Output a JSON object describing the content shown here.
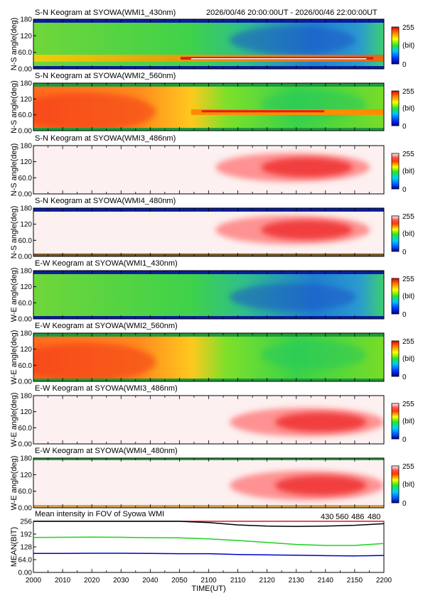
{
  "chart_data": {
    "type": "heatmap",
    "header": {
      "time_range_start": "2026/00/46 20:00:00UT",
      "separator": " - ",
      "time_range_end": "2026/00/46 22:00:00UT"
    },
    "x_axis": {
      "label": "TIME(UT)",
      "range": [
        2000,
        2200
      ],
      "ticks": [
        "2000",
        "2010",
        "2020",
        "2030",
        "2040",
        "2050",
        "2100",
        "2110",
        "2120",
        "2130",
        "2140",
        "2150",
        "2200"
      ]
    },
    "keograms": [
      {
        "title": "S-N Keogram at SYOWA(WMI1_430nm)",
        "ylabel": "N-S angle(deg)",
        "yticks": [
          "180",
          "120",
          "60.0",
          "0.00"
        ],
        "ylim": [
          0,
          180
        ],
        "colorbar": {
          "min": "0",
          "max": "255",
          "unit": "(bit)"
        },
        "palette": "rainbow",
        "style": "blue"
      },
      {
        "title": "S-N Keogram at SYOWA(WMI2_560nm)",
        "ylabel": "N-S angle(deg)",
        "yticks": [
          "180",
          "120",
          "60.0",
          "0.00"
        ],
        "ylim": [
          0,
          180
        ],
        "colorbar": {
          "min": "0",
          "max": "255",
          "unit": "(bit)"
        },
        "palette": "rainbow",
        "style": "green"
      },
      {
        "title": "S-N Keogram at SYOWA(WMI3_486nm)",
        "ylabel": "N-S angle(deg)",
        "yticks": [
          "180",
          "120",
          "60.0",
          "0.00"
        ],
        "ylim": [
          0,
          180
        ],
        "colorbar": {
          "min": "0",
          "max": "255",
          "unit": "(bit)"
        },
        "palette": "red",
        "style": "red-sn"
      },
      {
        "title": "S-N Keogram at SYOWA(WMI4_480nm)",
        "ylabel": "N-S angle(deg)",
        "yticks": [
          "180",
          "120",
          "60.0",
          "0.00"
        ],
        "ylim": [
          0,
          180
        ],
        "colorbar": {
          "min": "0",
          "max": "255",
          "unit": "(bit)"
        },
        "palette": "red",
        "style": "red-sn-dark"
      },
      {
        "title": "E-W Keogram at SYOWA(WMI1_430nm)",
        "ylabel": "W-E angle(deg)",
        "yticks": [
          "180",
          "120",
          "60.0",
          "0.00"
        ],
        "ylim": [
          0,
          180
        ],
        "colorbar": {
          "min": "0",
          "max": "255",
          "unit": "(bit)"
        },
        "palette": "rainbow",
        "style": "blue-ew"
      },
      {
        "title": "E-W Keogram at SYOWA(WMI2_560nm)",
        "ylabel": "W-E angle(deg)",
        "yticks": [
          "180",
          "120",
          "60.0",
          "0.00"
        ],
        "ylim": [
          0,
          180
        ],
        "colorbar": {
          "min": "0",
          "max": "255",
          "unit": "(bit)"
        },
        "palette": "rainbow",
        "style": "green-ew"
      },
      {
        "title": "E-W Keogram at SYOWA(WMI3_486nm)",
        "ylabel": "W-E angle(deg)",
        "yticks": [
          "180",
          "120",
          "60.0",
          "0.00"
        ],
        "ylim": [
          0,
          180
        ],
        "colorbar": {
          "min": "0",
          "max": "255",
          "unit": "(bit)"
        },
        "palette": "red",
        "style": "red-ew"
      },
      {
        "title": "E-W Keogram at SYOWA(WMI4_480nm)",
        "ylabel": "W-E angle(deg)",
        "yticks": [
          "180",
          "120",
          "60.0",
          "0.00"
        ],
        "ylim": [
          0,
          180
        ],
        "colorbar": {
          "min": "0",
          "max": "255",
          "unit": "(bit)"
        },
        "palette": "red",
        "style": "red-ew-dark"
      }
    ],
    "mean_intensity": {
      "title": "Mean intensity in FOV of Syowa WMI",
      "ylabel": "MEAN(BIT)",
      "yticks": [
        "256",
        "192",
        "128",
        "64.0",
        "0.00"
      ],
      "ylim": [
        0,
        256
      ],
      "x": [
        2000,
        2010,
        2020,
        2030,
        2040,
        2050,
        2100,
        2110,
        2120,
        2130,
        2140,
        2150,
        2200
      ],
      "series": [
        {
          "name": "430",
          "color": "#0000c8",
          "values": [
            95,
            95,
            96,
            96,
            95,
            94,
            94,
            90,
            88,
            86,
            84,
            83,
            85
          ]
        },
        {
          "name": "560",
          "color": "#1ed21e",
          "values": [
            175,
            176,
            177,
            176,
            174,
            173,
            168,
            160,
            150,
            140,
            135,
            135,
            145
          ]
        },
        {
          "name": "486",
          "color": "#d21e1e",
          "values": [
            256,
            256,
            256,
            256,
            256,
            256,
            256,
            256,
            256,
            256,
            256,
            256,
            256
          ]
        },
        {
          "name": "480",
          "color": "#000000",
          "values": [
            256,
            256,
            256,
            256,
            256,
            256,
            250,
            238,
            232,
            230,
            232,
            236,
            244
          ]
        }
      ]
    },
    "grid": false,
    "legend": "top-right"
  }
}
